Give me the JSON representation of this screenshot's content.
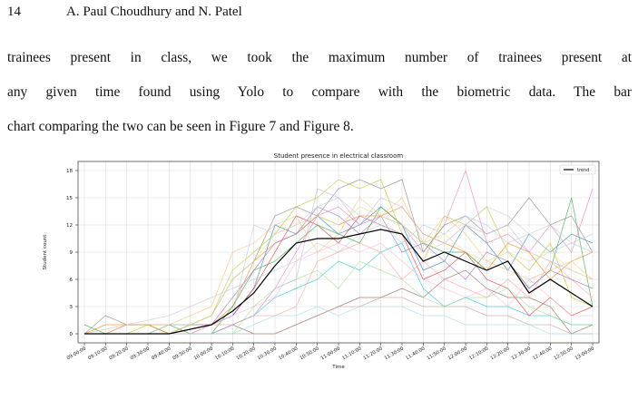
{
  "header": {
    "page_number": "14",
    "authors": "A. Paul Choudhury and N. Patel"
  },
  "paragraph": {
    "lines": [
      "trainees present in class, we took the maximum number of trainees present at",
      "any given time found using Yolo to compare with the biometric data. The bar",
      "chart comparing the two can be seen in Figure 7 and Figure 8."
    ]
  },
  "chart_data": {
    "type": "line",
    "title": "Student presence in electrical classroom",
    "xlabel": "Time",
    "ylabel": "Student count",
    "ylim": [
      -1,
      19
    ],
    "yticks": [
      "0",
      "3",
      "6",
      "9",
      "12",
      "15",
      "18"
    ],
    "categories": [
      "09:00:00",
      "09:10:00",
      "09:20:00",
      "09:30:00",
      "09:40:00",
      "09:50:00",
      "10:00:00",
      "10:10:00",
      "10:20:00",
      "10:30:00",
      "10:40:00",
      "10:50:00",
      "11:00:00",
      "11:10:00",
      "11:20:00",
      "11:30:00",
      "11:40:00",
      "11:50:00",
      "12:00:00",
      "12:10:00",
      "12:20:00",
      "12:30:00",
      "12:40:00",
      "12:50:00",
      "13:00:00"
    ],
    "grid": true,
    "legend": {
      "position": "top-right",
      "entries": [
        "trend"
      ]
    },
    "series": [
      {
        "name": "trend",
        "color": "#000000",
        "values": [
          0,
          0,
          0,
          0,
          0,
          0.5,
          1,
          2.5,
          4.5,
          7.5,
          10,
          10.5,
          10.5,
          11,
          11.5,
          11,
          8,
          9,
          8,
          7,
          8,
          4.5,
          6,
          4.5,
          3
        ]
      },
      {
        "color": "#1f77b4",
        "values": [
          0,
          0,
          0,
          0,
          0,
          1,
          1,
          2,
          5,
          12,
          11,
          13,
          11,
          12,
          14,
          12,
          7,
          8,
          12,
          10,
          7,
          11,
          9,
          11,
          10
        ]
      },
      {
        "color": "#ff7f0e",
        "values": [
          0,
          1,
          1,
          1,
          0,
          0,
          1,
          3,
          8,
          10,
          11,
          13,
          12,
          13,
          13,
          14,
          11,
          10,
          9,
          7,
          10,
          9,
          6,
          8,
          9
        ]
      },
      {
        "color": "#2ca02c",
        "values": [
          1,
          0,
          0,
          0,
          1,
          0,
          0,
          3,
          7,
          8,
          10,
          12,
          11,
          10,
          14,
          12,
          10,
          9,
          9,
          7,
          8,
          5,
          7,
          15,
          3
        ]
      },
      {
        "color": "#d62728",
        "values": [
          0,
          0,
          1,
          1,
          0,
          1,
          1,
          2,
          5,
          9,
          13,
          12,
          10,
          13,
          12,
          11,
          6,
          7,
          9,
          6,
          5,
          2,
          4,
          2,
          3
        ]
      },
      {
        "color": "#9467bd",
        "values": [
          0,
          0,
          0,
          0,
          0,
          0,
          1,
          4,
          7,
          10,
          11,
          14,
          13,
          11,
          13,
          9,
          10,
          8,
          6,
          9,
          8,
          5,
          7,
          6,
          5
        ]
      },
      {
        "color": "#8c564b",
        "values": [
          0,
          0,
          0,
          0,
          0,
          0,
          0,
          1,
          0,
          0,
          1,
          2,
          3,
          4,
          4,
          5,
          4,
          6,
          7,
          5,
          4,
          4,
          3,
          0,
          1
        ]
      },
      {
        "color": "#e377c2",
        "values": [
          0,
          0,
          0,
          0,
          0,
          0,
          0,
          1,
          2,
          5,
          9,
          13,
          14,
          12,
          13,
          12,
          9,
          12,
          18,
          10,
          11,
          9,
          12,
          9,
          16
        ]
      },
      {
        "color": "#7f7f7f",
        "values": [
          0,
          2,
          1,
          1,
          1,
          1,
          2,
          6,
          8,
          13,
          14,
          13,
          16,
          17,
          16,
          17,
          9,
          12,
          13,
          11,
          12,
          15,
          12,
          13,
          9
        ]
      },
      {
        "color": "#bcbd22",
        "values": [
          0,
          0,
          0,
          1,
          0,
          1,
          2,
          7,
          9,
          11,
          14,
          15,
          17,
          16,
          17,
          11,
          8,
          13,
          12,
          14,
          9,
          7,
          10,
          4,
          3
        ]
      },
      {
        "color": "#17becf",
        "values": [
          0,
          0,
          0,
          0,
          0,
          0,
          0,
          1,
          2,
          4,
          5,
          6,
          8,
          7,
          9,
          10,
          5,
          3,
          4,
          3,
          3,
          2,
          2,
          1,
          1
        ]
      },
      {
        "color": "#aec7e8",
        "values": [
          0,
          0,
          0,
          0,
          1,
          1,
          1,
          2,
          12,
          11,
          12,
          14,
          15,
          13,
          12,
          10,
          12,
          11,
          13,
          12,
          10,
          11,
          9,
          10,
          9
        ]
      },
      {
        "color": "#ffbb78",
        "values": [
          0,
          0,
          1,
          1,
          1,
          2,
          3,
          9,
          10,
          12,
          13,
          9,
          11,
          15,
          13,
          15,
          10,
          13,
          11,
          8,
          7,
          6,
          7,
          8,
          6
        ]
      },
      {
        "color": "#98df8a",
        "values": [
          0,
          0,
          0,
          0,
          0,
          0,
          0,
          0,
          3,
          5,
          6,
          7,
          5,
          8,
          7,
          6,
          4,
          3,
          4,
          4,
          5,
          3,
          2,
          1,
          1
        ]
      },
      {
        "color": "#ff9896",
        "values": [
          0,
          0,
          0,
          0,
          0,
          0,
          1,
          1,
          2,
          2,
          3,
          8,
          9,
          10,
          9,
          6,
          8,
          6,
          5,
          4,
          6,
          4,
          8,
          6,
          4
        ]
      },
      {
        "color": "#c5b0d5",
        "values": [
          0,
          0,
          0,
          0,
          0,
          0,
          0,
          1,
          2,
          5,
          6,
          16,
          15,
          12,
          15,
          14,
          11,
          10,
          12,
          11,
          12,
          9,
          8,
          7,
          6
        ]
      },
      {
        "color": "#c49c94",
        "values": [
          0,
          0,
          0,
          0,
          0,
          0,
          0,
          0,
          0,
          0,
          1,
          2,
          3,
          3,
          4,
          4,
          3,
          3,
          3,
          2,
          2,
          1,
          1,
          0,
          0
        ]
      },
      {
        "color": "#f7b6d2",
        "values": [
          0,
          0,
          0,
          0,
          0,
          0,
          1,
          2,
          3,
          4,
          8,
          9,
          10,
          9,
          10,
          8,
          6,
          5,
          4,
          5,
          3,
          6,
          4,
          2,
          2
        ]
      },
      {
        "color": "#c7c7c7",
        "values": [
          0,
          0.5,
          1,
          1.5,
          2,
          3,
          4,
          5,
          6,
          7,
          8,
          10,
          9,
          11,
          12,
          11,
          9,
          10,
          12,
          14,
          13,
          11,
          12,
          10,
          11
        ]
      },
      {
        "color": "#dbdb8d",
        "values": [
          0,
          0,
          0,
          0,
          0,
          1,
          2,
          6,
          8,
          11,
          12,
          13,
          12,
          14,
          13,
          12,
          10,
          11,
          9,
          8,
          9,
          8,
          9,
          7,
          6
        ]
      },
      {
        "color": "#9edae5",
        "values": [
          0,
          0,
          0,
          0,
          0,
          0,
          0,
          0,
          1,
          2,
          2,
          3,
          2,
          3,
          3,
          3,
          2,
          2,
          1,
          1,
          1,
          1,
          0,
          0,
          0
        ]
      }
    ]
  }
}
